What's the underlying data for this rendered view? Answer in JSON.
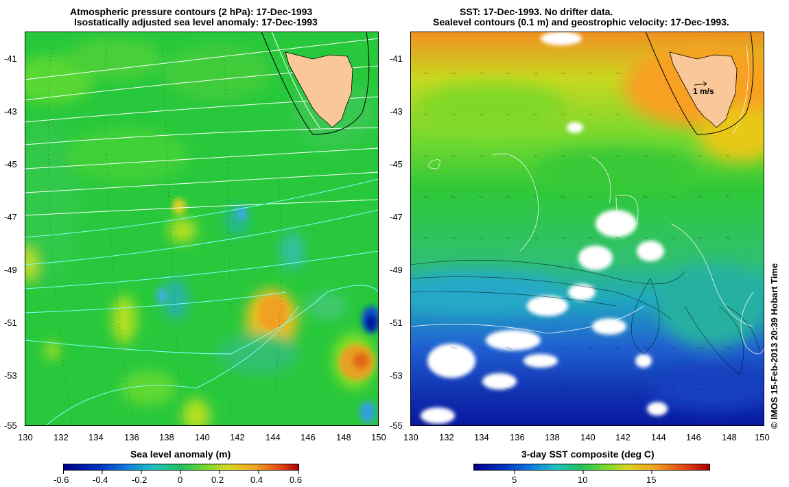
{
  "left_panel": {
    "title_line1": "Atmospheric pressure contours (2 hPa): 17-Dec-1993",
    "title_line2": "Isostatically adjusted sea level anomaly: 17-Dec-1993",
    "colorbar_title": "Sea level anomaly (m)",
    "colorbar_ticks": [
      "-0.6",
      "-0.4",
      "-0.2",
      "0",
      "0.2",
      "0.4",
      "0.6"
    ]
  },
  "right_panel": {
    "title_line1": "SST: 17-Dec-1993. No drifter data.",
    "title_line2": "Sealevel contours (0.1 m) and geostrophic velocity: 17-Dec-1993.",
    "colorbar_title": "3-day SST composite (deg C)",
    "colorbar_ticks": [
      "5",
      "10",
      "15"
    ],
    "velocity_scale_label": "1 m/s"
  },
  "axes": {
    "lat_ticks": [
      "-41",
      "-43",
      "-45",
      "-47",
      "-49",
      "-51",
      "-53",
      "-55"
    ],
    "lon_ticks": [
      "130",
      "132",
      "134",
      "136",
      "138",
      "140",
      "142",
      "144",
      "146",
      "148",
      "150"
    ]
  },
  "credit": "© IMOS 15-Feb-2013 20:39 Hobart Time",
  "colors": {
    "land": "#fac898",
    "cloud": "#ffffff",
    "contour_white": "#ffffff",
    "contour_cyan": "#7fffff"
  }
}
